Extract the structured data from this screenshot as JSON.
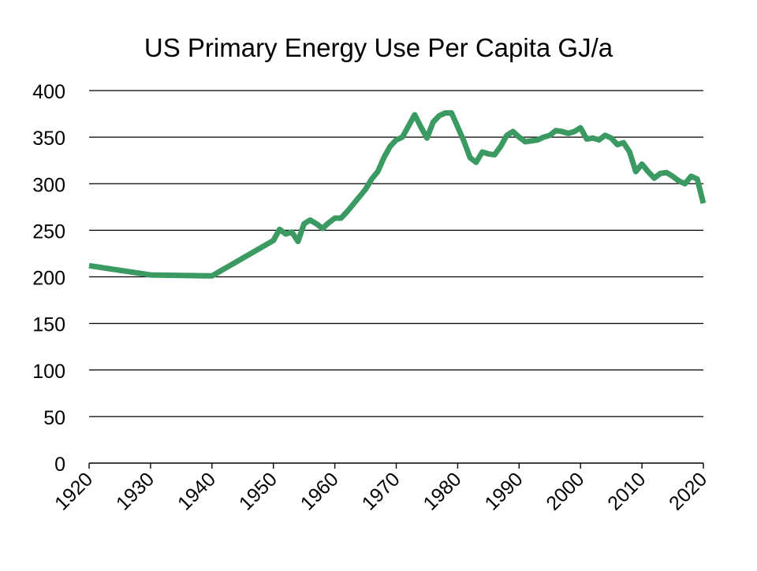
{
  "chart_data": {
    "type": "line",
    "title": "US Primary Energy Use Per Capita GJ/a",
    "xlabel": "",
    "ylabel": "",
    "xlim": [
      1920,
      2020
    ],
    "ylim": [
      0,
      400
    ],
    "x_ticks": [
      "1920",
      "1930",
      "1940",
      "1950",
      "1960",
      "1970",
      "1980",
      "1990",
      "2000",
      "2010",
      "2020"
    ],
    "y_ticks": [
      "0",
      "50",
      "100",
      "150",
      "200",
      "250",
      "300",
      "350",
      "400"
    ],
    "grid": "horizontal",
    "legend": "none",
    "series": [
      {
        "name": "US Primary Energy Use Per Capita GJ/a",
        "color": "#3a9a62",
        "x": [
          1920,
          1930,
          1940,
          1950,
          1951,
          1952,
          1953,
          1954,
          1955,
          1956,
          1957,
          1958,
          1959,
          1960,
          1961,
          1962,
          1963,
          1964,
          1965,
          1966,
          1967,
          1968,
          1969,
          1970,
          1971,
          1972,
          1973,
          1974,
          1975,
          1976,
          1977,
          1978,
          1979,
          1980,
          1981,
          1982,
          1983,
          1984,
          1985,
          1986,
          1987,
          1988,
          1989,
          1990,
          1991,
          1992,
          1993,
          1994,
          1995,
          1996,
          1997,
          1998,
          1999,
          2000,
          2001,
          2002,
          2003,
          2004,
          2005,
          2006,
          2007,
          2008,
          2009,
          2010,
          2011,
          2012,
          2013,
          2014,
          2015,
          2016,
          2017,
          2018,
          2019,
          2020
        ],
        "values": [
          212,
          202,
          201,
          239,
          251,
          246,
          248,
          238,
          257,
          261,
          257,
          252,
          258,
          263,
          263,
          270,
          278,
          286,
          294,
          305,
          313,
          328,
          340,
          347,
          350,
          362,
          374,
          361,
          349,
          366,
          373,
          376,
          376,
          361,
          346,
          328,
          323,
          334,
          332,
          331,
          340,
          352,
          356,
          350,
          345,
          346,
          347,
          350,
          352,
          357,
          356,
          354,
          356,
          360,
          348,
          349,
          347,
          352,
          349,
          342,
          344,
          334,
          313,
          321,
          313,
          306,
          311,
          312,
          308,
          303,
          300,
          308,
          305,
          279
        ]
      }
    ]
  }
}
